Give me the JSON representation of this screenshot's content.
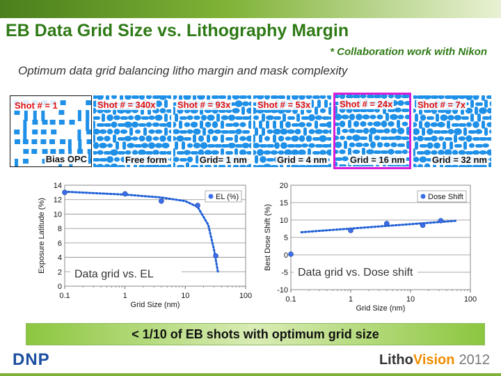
{
  "header": {
    "title": "EB Data Grid Size vs. Lithography Margin",
    "collaboration": "* Collaboration work with Nikon",
    "subtitle": "Optimum data grid balancing litho margin and mask complexity"
  },
  "panels": [
    {
      "shot": "Shot # = 1",
      "label": "Bias OPC",
      "style": "rect"
    },
    {
      "shot": "Shot # = 340x",
      "label": "Free form",
      "style": "blob"
    },
    {
      "shot": "Shot # = 93x",
      "label": "Grid= 1 nm",
      "style": "blob"
    },
    {
      "shot": "Shot # = 53x",
      "label": "Grid = 4 nm",
      "style": "blob"
    },
    {
      "shot": "Shot # = 24x",
      "label": "Grid = 16 nm",
      "style": "blob",
      "highlight": true
    },
    {
      "shot": "Shot # = 7x",
      "label": "Grid = 32 nm",
      "style": "blob"
    }
  ],
  "colors": {
    "brand_green": "#2f7a16",
    "pattern_blue": "#1e90e8",
    "shot_red": "#e01010",
    "highlight_magenta": "#d81bd8",
    "point_blue": "#3a6ee8"
  },
  "chart_data": [
    {
      "type": "scatter",
      "xscale": "log",
      "xlabel": "Grid Size (nm)",
      "ylabel": "Exposure Latitude (%)",
      "xlim": [
        0.1,
        100
      ],
      "ylim": [
        0,
        14
      ],
      "xticks": [
        "0.1",
        "1",
        "10",
        "100"
      ],
      "yticks": [
        "0",
        "2",
        "4",
        "6",
        "8",
        "10",
        "12",
        "14"
      ],
      "grid": "horizontal",
      "legend": "top-right",
      "annotation": "Data grid vs. EL",
      "series": [
        {
          "name": "EL (%)",
          "x": [
            0.1,
            1,
            4,
            16,
            32
          ],
          "y": [
            13.0,
            12.8,
            11.8,
            11.2,
            4.2
          ]
        }
      ],
      "trend": {
        "x": [
          0.1,
          1,
          4,
          10,
          16,
          24,
          30,
          35
        ],
        "y": [
          13.1,
          12.7,
          12.3,
          11.8,
          11.0,
          8.5,
          5.0,
          1.8
        ]
      }
    },
    {
      "type": "scatter",
      "xscale": "log",
      "xlabel": "Grid Size (nm)",
      "ylabel": "Best Dose Shift (%)",
      "xlim": [
        0.1,
        100
      ],
      "ylim": [
        -10,
        20
      ],
      "xticks": [
        "0.1",
        "1",
        "10",
        "100"
      ],
      "yticks": [
        "-10",
        "-5",
        "0",
        "5",
        "10",
        "15",
        "20"
      ],
      "grid": "horizontal",
      "legend": "top-right",
      "annotation": "Data grid vs. Dose shift",
      "series": [
        {
          "name": "Dose Shift",
          "x": [
            0.1,
            1,
            4,
            16,
            32
          ],
          "y": [
            0.2,
            7.0,
            9.0,
            8.5,
            9.8
          ]
        }
      ],
      "trend": {
        "x": [
          0.15,
          60
        ],
        "y": [
          6.5,
          9.8
        ]
      }
    }
  ],
  "banner": "< 1/10 of EB shots with optimum grid size",
  "footer": {
    "left_logo": "DNP",
    "right_logo_a": "Litho",
    "right_logo_b": "Vision",
    "right_logo_year": "2012"
  }
}
